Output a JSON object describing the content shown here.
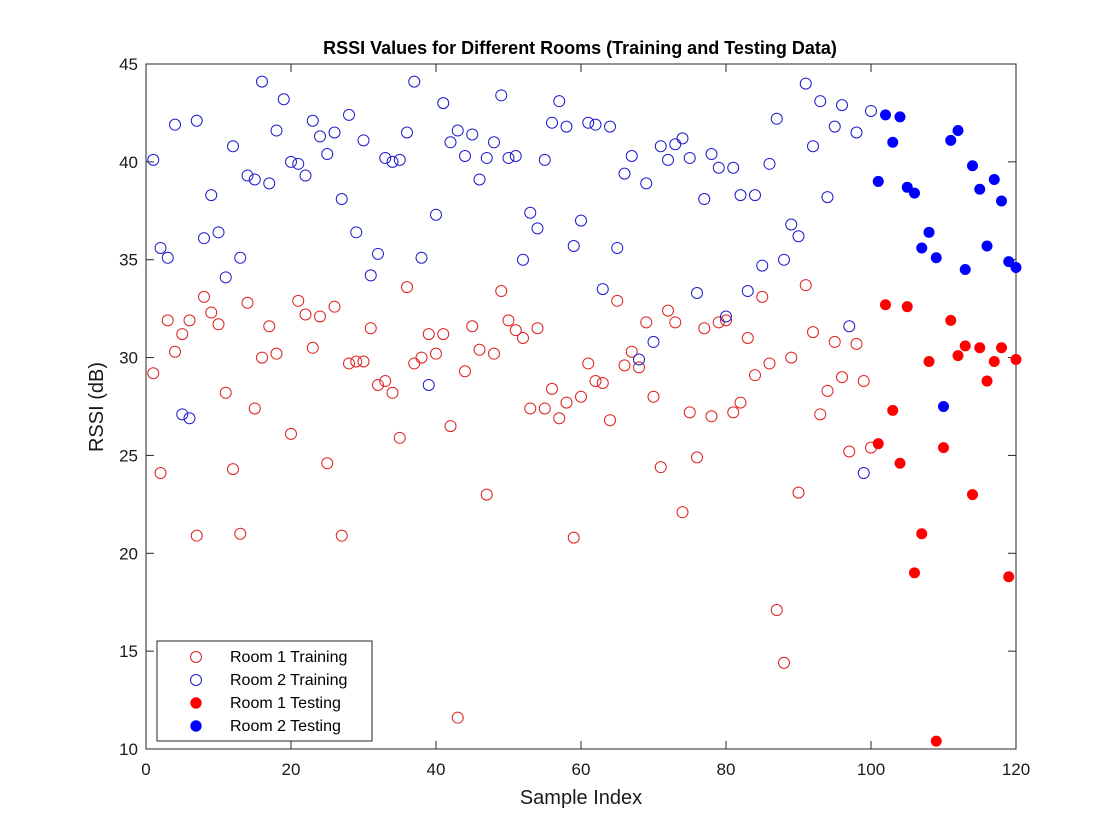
{
  "chart_data": {
    "type": "scatter",
    "title": "RSSI Values for Different Rooms (Training and Testing Data)",
    "xlabel": "Sample Index",
    "ylabel": "RSSI (dB)",
    "xlim": [
      0,
      120
    ],
    "ylim": [
      10,
      45
    ],
    "xticks": [
      0,
      20,
      40,
      60,
      80,
      100,
      120
    ],
    "yticks": [
      10,
      15,
      20,
      25,
      30,
      35,
      40,
      45
    ],
    "grid": false,
    "legend_position": "bottom-left",
    "series": [
      {
        "name": "Room 1 Training",
        "marker": "open-circle",
        "color": "#e02020",
        "points": [
          [
            1,
            29.2
          ],
          [
            2,
            24.1
          ],
          [
            3,
            31.9
          ],
          [
            4,
            30.3
          ],
          [
            5,
            31.2
          ],
          [
            6,
            31.9
          ],
          [
            7,
            20.9
          ],
          [
            8,
            33.1
          ],
          [
            9,
            32.3
          ],
          [
            10,
            31.7
          ],
          [
            11,
            28.2
          ],
          [
            12,
            24.3
          ],
          [
            13,
            21.0
          ],
          [
            14,
            32.8
          ],
          [
            15,
            27.4
          ],
          [
            16,
            30.0
          ],
          [
            17,
            31.6
          ],
          [
            18,
            30.2
          ],
          [
            20,
            26.1
          ],
          [
            21,
            32.9
          ],
          [
            22,
            32.2
          ],
          [
            23,
            30.5
          ],
          [
            24,
            32.1
          ],
          [
            25,
            24.6
          ],
          [
            26,
            32.6
          ],
          [
            27,
            20.9
          ],
          [
            28,
            29.7
          ],
          [
            29,
            29.8
          ],
          [
            30,
            29.8
          ],
          [
            31,
            31.5
          ],
          [
            32,
            28.6
          ],
          [
            33,
            28.8
          ],
          [
            34,
            28.2
          ],
          [
            35,
            25.9
          ],
          [
            36,
            33.6
          ],
          [
            37,
            29.7
          ],
          [
            38,
            30.0
          ],
          [
            39,
            31.2
          ],
          [
            40,
            30.2
          ],
          [
            41,
            31.2
          ],
          [
            42,
            26.5
          ],
          [
            43,
            11.6
          ],
          [
            44,
            29.3
          ],
          [
            45,
            31.6
          ],
          [
            46,
            30.4
          ],
          [
            47,
            23.0
          ],
          [
            48,
            30.2
          ],
          [
            49,
            33.4
          ],
          [
            50,
            31.9
          ],
          [
            51,
            31.4
          ],
          [
            52,
            31.0
          ],
          [
            53,
            27.4
          ],
          [
            54,
            31.5
          ],
          [
            55,
            27.4
          ],
          [
            56,
            28.4
          ],
          [
            57,
            26.9
          ],
          [
            58,
            27.7
          ],
          [
            59,
            20.8
          ],
          [
            60,
            28.0
          ],
          [
            61,
            29.7
          ],
          [
            62,
            28.8
          ],
          [
            63,
            28.7
          ],
          [
            64,
            26.8
          ],
          [
            65,
            32.9
          ],
          [
            66,
            29.6
          ],
          [
            67,
            30.3
          ],
          [
            68,
            29.5
          ],
          [
            69,
            31.8
          ],
          [
            70,
            28.0
          ],
          [
            71,
            24.4
          ],
          [
            72,
            32.4
          ],
          [
            73,
            31.8
          ],
          [
            74,
            22.1
          ],
          [
            75,
            27.2
          ],
          [
            76,
            24.9
          ],
          [
            77,
            31.5
          ],
          [
            78,
            27.0
          ],
          [
            79,
            31.8
          ],
          [
            80,
            31.9
          ],
          [
            81,
            27.2
          ],
          [
            82,
            27.7
          ],
          [
            83,
            31.0
          ],
          [
            84,
            29.1
          ],
          [
            85,
            33.1
          ],
          [
            86,
            29.7
          ],
          [
            87,
            17.1
          ],
          [
            88,
            14.4
          ],
          [
            89,
            30.0
          ],
          [
            90,
            23.1
          ],
          [
            91,
            33.7
          ],
          [
            92,
            31.3
          ],
          [
            93,
            27.1
          ],
          [
            94,
            28.3
          ],
          [
            95,
            30.8
          ],
          [
            96,
            29.0
          ],
          [
            97,
            25.2
          ],
          [
            98,
            30.7
          ],
          [
            99,
            28.8
          ],
          [
            100,
            25.4
          ]
        ]
      },
      {
        "name": "Room 2 Training",
        "marker": "open-circle",
        "color": "#1c1ccc",
        "points": [
          [
            1,
            40.1
          ],
          [
            2,
            35.6
          ],
          [
            3,
            35.1
          ],
          [
            4,
            41.9
          ],
          [
            5,
            27.1
          ],
          [
            6,
            26.9
          ],
          [
            7,
            42.1
          ],
          [
            8,
            36.1
          ],
          [
            9,
            38.3
          ],
          [
            10,
            36.4
          ],
          [
            11,
            34.1
          ],
          [
            12,
            40.8
          ],
          [
            13,
            35.1
          ],
          [
            14,
            39.3
          ],
          [
            15,
            39.1
          ],
          [
            16,
            44.1
          ],
          [
            17,
            38.9
          ],
          [
            18,
            41.6
          ],
          [
            19,
            43.2
          ],
          [
            20,
            40.0
          ],
          [
            21,
            39.9
          ],
          [
            22,
            39.3
          ],
          [
            23,
            42.1
          ],
          [
            24,
            41.3
          ],
          [
            25,
            40.4
          ],
          [
            26,
            41.5
          ],
          [
            27,
            38.1
          ],
          [
            28,
            42.4
          ],
          [
            29,
            36.4
          ],
          [
            30,
            41.1
          ],
          [
            31,
            34.2
          ],
          [
            32,
            35.3
          ],
          [
            33,
            40.2
          ],
          [
            34,
            40.0
          ],
          [
            35,
            40.1
          ],
          [
            36,
            41.5
          ],
          [
            37,
            44.1
          ],
          [
            38,
            35.1
          ],
          [
            39,
            28.6
          ],
          [
            40,
            37.3
          ],
          [
            41,
            43.0
          ],
          [
            42,
            41.0
          ],
          [
            43,
            41.6
          ],
          [
            44,
            40.3
          ],
          [
            45,
            41.4
          ],
          [
            46,
            39.1
          ],
          [
            47,
            40.2
          ],
          [
            48,
            41.0
          ],
          [
            49,
            43.4
          ],
          [
            50,
            40.2
          ],
          [
            51,
            40.3
          ],
          [
            52,
            35.0
          ],
          [
            53,
            37.4
          ],
          [
            54,
            36.6
          ],
          [
            55,
            40.1
          ],
          [
            56,
            42.0
          ],
          [
            57,
            43.1
          ],
          [
            58,
            41.8
          ],
          [
            59,
            35.7
          ],
          [
            60,
            37.0
          ],
          [
            61,
            42.0
          ],
          [
            62,
            41.9
          ],
          [
            63,
            33.5
          ],
          [
            64,
            41.8
          ],
          [
            65,
            35.6
          ],
          [
            66,
            39.4
          ],
          [
            67,
            40.3
          ],
          [
            68,
            29.9
          ],
          [
            69,
            38.9
          ],
          [
            70,
            30.8
          ],
          [
            71,
            40.8
          ],
          [
            72,
            40.1
          ],
          [
            73,
            40.9
          ],
          [
            74,
            41.2
          ],
          [
            75,
            40.2
          ],
          [
            76,
            33.3
          ],
          [
            77,
            38.1
          ],
          [
            78,
            40.4
          ],
          [
            79,
            39.7
          ],
          [
            80,
            32.1
          ],
          [
            81,
            39.7
          ],
          [
            82,
            38.3
          ],
          [
            83,
            33.4
          ],
          [
            84,
            38.3
          ],
          [
            85,
            34.7
          ],
          [
            86,
            39.9
          ],
          [
            87,
            42.2
          ],
          [
            88,
            35.0
          ],
          [
            89,
            36.8
          ],
          [
            90,
            36.2
          ],
          [
            91,
            44.0
          ],
          [
            92,
            40.8
          ],
          [
            93,
            43.1
          ],
          [
            94,
            38.2
          ],
          [
            95,
            41.8
          ],
          [
            96,
            42.9
          ],
          [
            97,
            31.6
          ],
          [
            98,
            41.5
          ],
          [
            99,
            24.1
          ],
          [
            100,
            42.6
          ]
        ]
      },
      {
        "name": "Room 1 Testing",
        "marker": "filled-circle",
        "color": "#ff0000",
        "points": [
          [
            101,
            25.6
          ],
          [
            102,
            32.7
          ],
          [
            103,
            27.3
          ],
          [
            104,
            24.6
          ],
          [
            105,
            32.6
          ],
          [
            106,
            19.0
          ],
          [
            107,
            21.0
          ],
          [
            108,
            29.8
          ],
          [
            109,
            10.4
          ],
          [
            110,
            25.4
          ],
          [
            111,
            31.9
          ],
          [
            112,
            30.1
          ],
          [
            113,
            30.6
          ],
          [
            114,
            23.0
          ],
          [
            115,
            30.5
          ],
          [
            116,
            28.8
          ],
          [
            117,
            29.8
          ],
          [
            118,
            30.5
          ],
          [
            119,
            18.8
          ],
          [
            120,
            29.9
          ]
        ]
      },
      {
        "name": "Room 2 Testing",
        "marker": "filled-circle",
        "color": "#0000ff",
        "points": [
          [
            101,
            39.0
          ],
          [
            102,
            42.4
          ],
          [
            103,
            41.0
          ],
          [
            104,
            42.3
          ],
          [
            105,
            38.7
          ],
          [
            106,
            38.4
          ],
          [
            107,
            35.6
          ],
          [
            108,
            36.4
          ],
          [
            109,
            35.1
          ],
          [
            110,
            27.5
          ],
          [
            111,
            41.1
          ],
          [
            112,
            41.6
          ],
          [
            113,
            34.5
          ],
          [
            114,
            39.8
          ],
          [
            115,
            38.6
          ],
          [
            116,
            35.7
          ],
          [
            117,
            39.1
          ],
          [
            118,
            38.0
          ],
          [
            119,
            34.9
          ],
          [
            120,
            34.6
          ]
        ]
      }
    ]
  }
}
